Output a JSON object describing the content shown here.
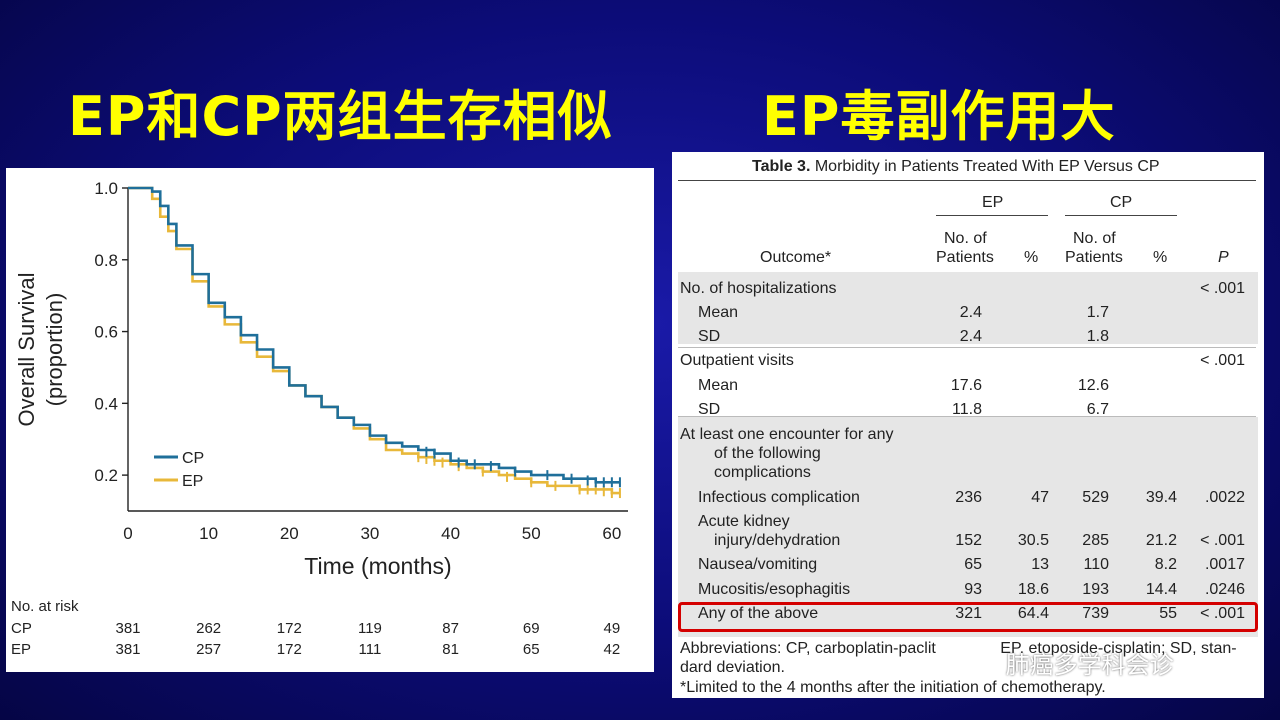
{
  "titles": {
    "left": "EP和CP两组生存相似",
    "right": "EP毒副作用大"
  },
  "chart_data": {
    "type": "line",
    "ylabel": "Overall Survival",
    "ylabel2": "(proportion)",
    "xlabel": "Time (months)",
    "xlim": [
      0,
      62
    ],
    "ylim": [
      0.1,
      1.0
    ],
    "xticks": [
      0,
      10,
      20,
      30,
      40,
      50,
      60
    ],
    "yticks": [
      0.2,
      0.4,
      0.6,
      0.8,
      1.0
    ],
    "ytick_labels": [
      "0.2",
      "0.4",
      "0.6",
      "0.8",
      "1.0"
    ],
    "legend_position": "bottom-left",
    "series": [
      {
        "name": "CP",
        "color": "#1f6f9a",
        "x": [
          0,
          2,
          3,
          4,
          5,
          6,
          8,
          10,
          12,
          14,
          16,
          18,
          20,
          22,
          24,
          26,
          28,
          30,
          32,
          34,
          36,
          38,
          40,
          42,
          44,
          46,
          48,
          50,
          52,
          54,
          56,
          58,
          60,
          61
        ],
        "y": [
          1.0,
          1.0,
          0.99,
          0.95,
          0.9,
          0.84,
          0.76,
          0.68,
          0.64,
          0.59,
          0.55,
          0.5,
          0.45,
          0.42,
          0.39,
          0.36,
          0.34,
          0.31,
          0.29,
          0.28,
          0.27,
          0.26,
          0.24,
          0.23,
          0.23,
          0.22,
          0.21,
          0.2,
          0.2,
          0.19,
          0.19,
          0.18,
          0.18,
          0.18
        ],
        "censor_x": [
          37,
          38,
          41,
          43,
          45,
          48,
          52,
          55,
          57,
          58,
          59,
          60,
          61
        ]
      },
      {
        "name": "EP",
        "color": "#e8b83a",
        "x": [
          0,
          2,
          3,
          4,
          5,
          6,
          8,
          10,
          12,
          14,
          16,
          18,
          20,
          22,
          24,
          26,
          28,
          30,
          32,
          34,
          36,
          38,
          40,
          42,
          44,
          46,
          48,
          50,
          52,
          54,
          56,
          58,
          60,
          61
        ],
        "y": [
          1.0,
          1.0,
          0.97,
          0.92,
          0.88,
          0.83,
          0.74,
          0.67,
          0.62,
          0.57,
          0.53,
          0.49,
          0.45,
          0.42,
          0.39,
          0.36,
          0.33,
          0.3,
          0.27,
          0.26,
          0.25,
          0.24,
          0.23,
          0.22,
          0.21,
          0.2,
          0.19,
          0.18,
          0.17,
          0.17,
          0.16,
          0.16,
          0.15,
          0.15
        ],
        "censor_x": [
          36,
          37,
          38,
          39,
          41,
          44,
          47,
          50,
          53,
          56,
          57,
          58,
          59,
          60,
          61
        ]
      }
    ],
    "risk_table": {
      "title": "No. at risk",
      "rows": [
        {
          "label": "CP",
          "values": [
            "381",
            "262",
            "172",
            "119",
            "87",
            "69",
            "49"
          ]
        },
        {
          "label": "EP",
          "values": [
            "381",
            "257",
            "172",
            "111",
            "81",
            "65",
            "42"
          ]
        }
      ]
    }
  },
  "table": {
    "caption_bold": "Table 3.",
    "caption": "Morbidity in Patients Treated With EP Versus CP",
    "group_ep": "EP",
    "group_cp": "CP",
    "col_outcome": "Outcome*",
    "col_no_of": "No. of",
    "col_patients": "Patients",
    "col_pct": "%",
    "col_p": "P",
    "rows": [
      {
        "label": "No. of hospitalizations",
        "p": "< .001"
      },
      {
        "label": "Mean",
        "ep_n": "2.4",
        "cp_n": "1.7"
      },
      {
        "label": "SD",
        "ep_n": "2.4",
        "cp_n": "1.8"
      },
      {
        "label": "Outpatient visits",
        "p": "< .001"
      },
      {
        "label": "Mean",
        "ep_n": "17.6",
        "cp_n": "12.6"
      },
      {
        "label": "SD",
        "ep_n": "11.8",
        "cp_n": "6.7"
      },
      {
        "label": "At least one encounter for any"
      },
      {
        "label": "of the following"
      },
      {
        "label": "complications"
      },
      {
        "label": "Infectious complication",
        "ep_n": "236",
        "ep_pct": "47",
        "cp_n": "529",
        "cp_pct": "39.4",
        "p": ".0022"
      },
      {
        "label": "Acute kidney"
      },
      {
        "label": "injury/dehydration",
        "ep_n": "152",
        "ep_pct": "30.5",
        "cp_n": "285",
        "cp_pct": "21.2",
        "p": "< .001"
      },
      {
        "label": "Nausea/vomiting",
        "ep_n": "65",
        "ep_pct": "13",
        "cp_n": "110",
        "cp_pct": "8.2",
        "p": ".0017"
      },
      {
        "label": "Mucositis/esophagitis",
        "ep_n": "93",
        "ep_pct": "18.6",
        "cp_n": "193",
        "cp_pct": "14.4",
        "p": ".0246"
      },
      {
        "label": "Any of the above",
        "ep_n": "321",
        "ep_pct": "64.4",
        "cp_n": "739",
        "cp_pct": "55",
        "p": "< .001"
      }
    ],
    "footnote1": "Abbreviations: CP, carboplatin-paclit",
    "footnote1b": "EP, etoposide-cisplatin; SD, stan-",
    "footnote2": "dard deviation.",
    "footnote3": "*Limited to the 4 months after the initiation of chemotherapy."
  },
  "watermark": "肺癌多学科会诊",
  "watermark_icon": "wechat-icon"
}
